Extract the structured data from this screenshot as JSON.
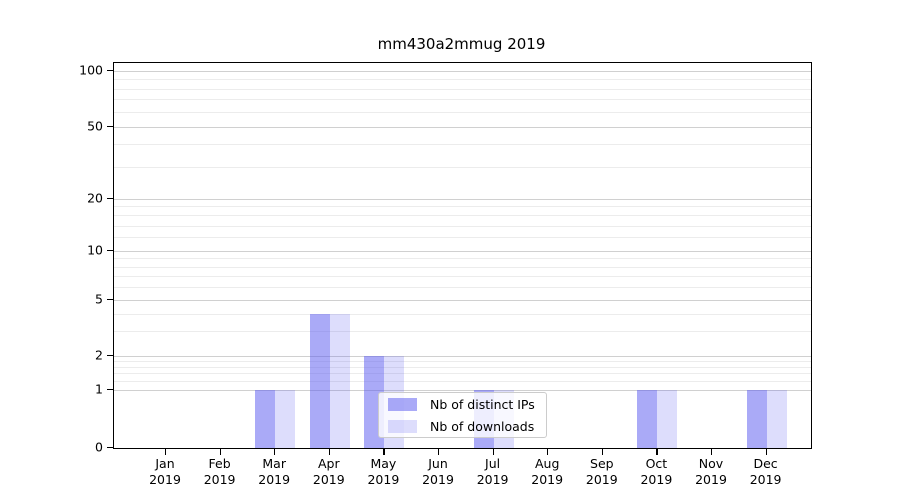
{
  "chart_data": {
    "type": "bar",
    "title": "mm430a2mmug 2019",
    "x_months": [
      "Jan",
      "Feb",
      "Mar",
      "Apr",
      "May",
      "Jun",
      "Jul",
      "Aug",
      "Sep",
      "Oct",
      "Nov",
      "Dec"
    ],
    "x_year": "2019",
    "categories": [
      "Jan 2019",
      "Feb 2019",
      "Mar 2019",
      "Apr 2019",
      "May 2019",
      "Jun 2019",
      "Jul 2019",
      "Aug 2019",
      "Sep 2019",
      "Oct 2019",
      "Nov 2019",
      "Dec 2019"
    ],
    "series": [
      {
        "name": "Nb of distinct IPs",
        "color": "rgba(85,85,240,0.5)",
        "values": [
          0,
          0,
          1,
          4,
          2,
          0,
          1,
          0,
          0,
          1,
          0,
          1
        ]
      },
      {
        "name": "Nb of downloads",
        "color": "rgba(85,85,240,0.2)",
        "values": [
          0,
          0,
          1,
          4,
          2,
          0,
          1,
          0,
          0,
          1,
          0,
          1
        ]
      }
    ],
    "ylabel": "",
    "xlabel": "",
    "yscale": "log-like",
    "ylim": [
      0,
      110
    ],
    "y_major_ticks": [
      100,
      50,
      20,
      10,
      5,
      2,
      1,
      0
    ],
    "y_minor_gridlines": [
      1.2,
      1.4,
      1.6,
      1.8,
      3,
      4,
      6,
      7,
      8,
      9,
      12,
      14,
      16,
      18,
      30,
      40,
      60,
      70,
      80,
      90
    ],
    "grid": true,
    "legend_position": "lower center"
  },
  "legend": {
    "items": [
      {
        "label": "Nb of distinct IPs"
      },
      {
        "label": "Nb of downloads"
      }
    ]
  },
  "colors": {
    "bar_dark": "rgba(85,85,240,0.5)",
    "bar_light": "rgba(85,85,240,0.2)",
    "grid_major": "#d0d0d0",
    "grid_minor": "#ececec",
    "axis": "#000000",
    "legend_border": "#cccccc",
    "background": "#ffffff"
  }
}
